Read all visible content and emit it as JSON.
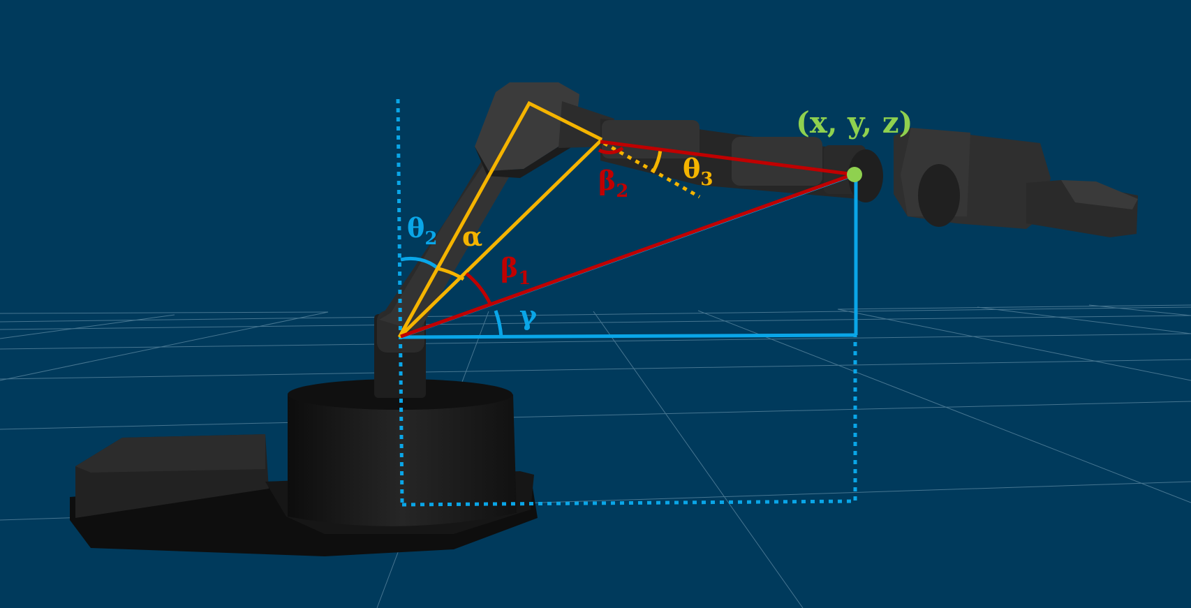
{
  "colors": {
    "background": "#003a5c",
    "grid": "#5f8aa3",
    "robot_dark": "#141414",
    "robot_mid": "#2a2a2a",
    "robot_light": "#3a3a3a",
    "blue": "#0aa6e8",
    "yellow": "#f5b400",
    "red": "#c00000",
    "green": "#8fd14f"
  },
  "labels": {
    "theta2": {
      "symbol": "θ",
      "sub": "2"
    },
    "alpha": "α",
    "beta1": {
      "symbol": "β",
      "sub": "1"
    },
    "beta2": {
      "symbol": "β",
      "sub": "2"
    },
    "theta3": {
      "symbol": "θ",
      "sub": "3"
    },
    "gamma": "γ",
    "end_effector": "(x, y, z)"
  }
}
